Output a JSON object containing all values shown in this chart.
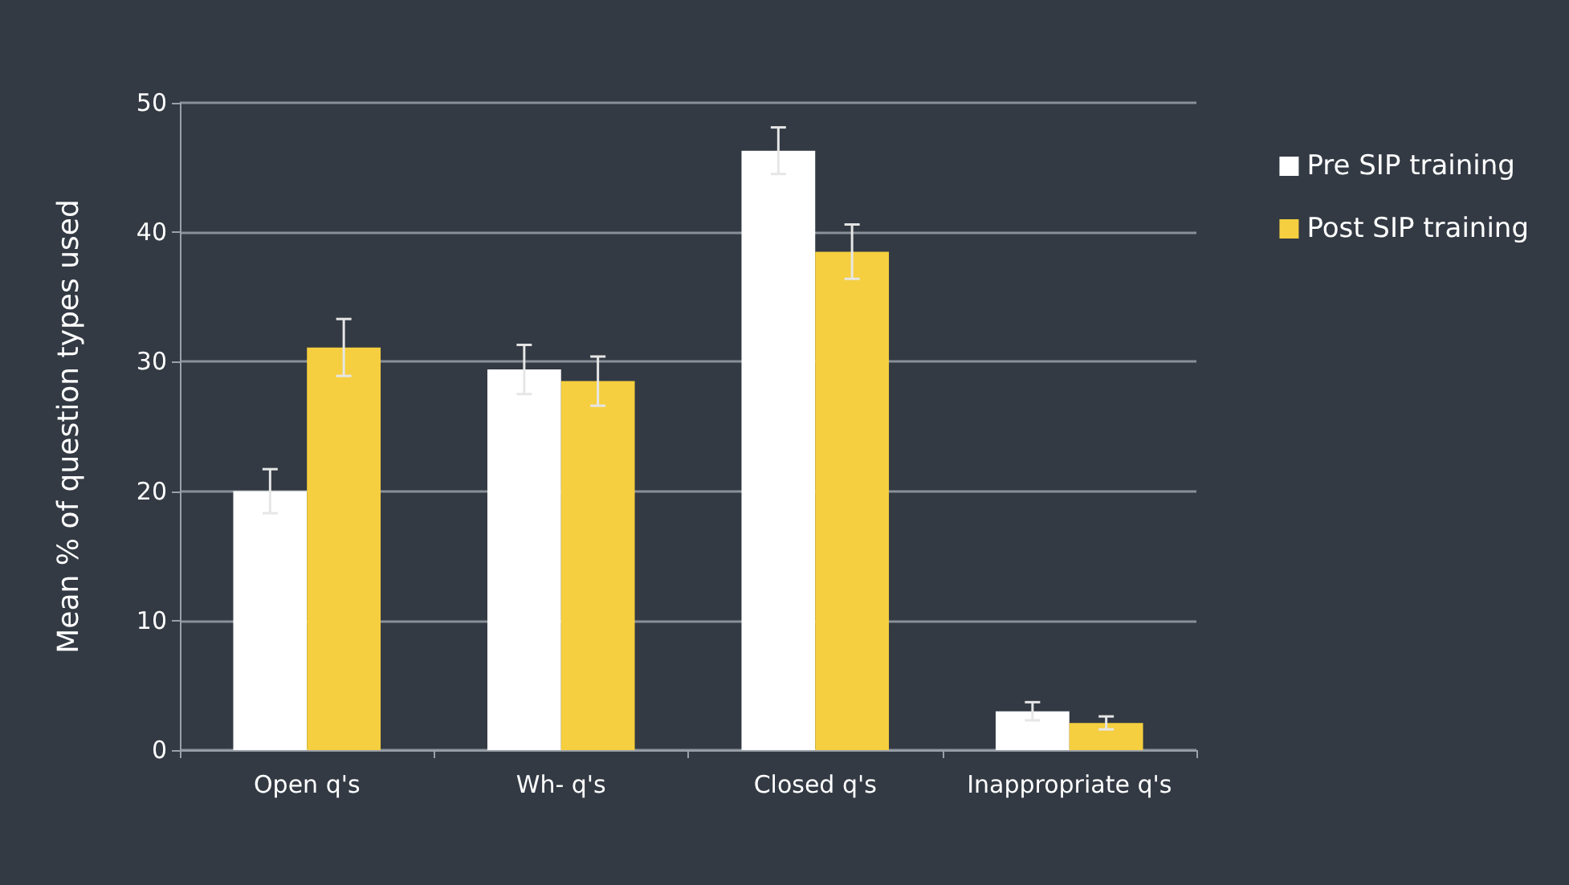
{
  "chart_data": {
    "type": "bar",
    "ylabel": "Mean % of question types used",
    "categories": [
      "Open q's",
      "Wh- q's",
      "Closed q's",
      "Inappropriate q's"
    ],
    "series": [
      {
        "name": "Pre SIP training",
        "color": "#ffffff",
        "values": [
          20.0,
          29.4,
          46.3,
          3.0
        ],
        "errors": [
          1.7,
          1.9,
          1.8,
          0.7
        ]
      },
      {
        "name": "Post SIP training",
        "color": "#f5cf3f",
        "values": [
          31.1,
          28.5,
          38.5,
          2.1
        ],
        "errors": [
          2.2,
          1.9,
          2.1,
          0.5
        ]
      }
    ],
    "ylim": [
      0,
      50
    ],
    "yticks": [
      0,
      10,
      20,
      30,
      40,
      50
    ],
    "grid": "y",
    "legend": "right"
  }
}
